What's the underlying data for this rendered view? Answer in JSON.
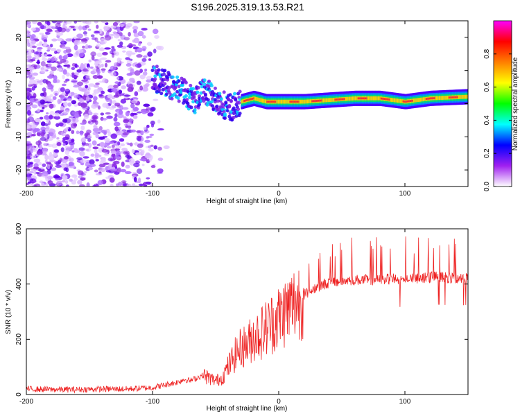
{
  "title": "S196.2025.319.13.53.R21",
  "chart_data": [
    {
      "type": "heatmap",
      "name": "spectrogram",
      "xlabel": "Height of straight line (km)",
      "ylabel": "Frequency (Hz)",
      "xlim": [
        -200,
        150
      ],
      "ylim": [
        -25,
        25
      ],
      "x_ticks": [
        -200,
        -100,
        0,
        100
      ],
      "y_ticks": [
        -20,
        -10,
        0,
        10,
        20
      ],
      "ridge": {
        "x": [
          -100,
          -90,
          -80,
          -70,
          -65,
          -60,
          -55,
          -50,
          -45,
          -40,
          -35,
          -30,
          -20,
          -10,
          0,
          20,
          40,
          60,
          80,
          100,
          120,
          150
        ],
        "frequency": [
          8,
          6,
          5,
          2,
          1,
          4,
          3,
          1,
          0,
          -1,
          -1,
          0,
          1,
          0,
          0,
          0,
          0.5,
          1,
          1,
          0,
          1,
          1.5
        ]
      },
      "colorbar": {
        "label": "Normalized spectral amplitude",
        "range": [
          0,
          1
        ],
        "ticks": [
          0,
          0.2,
          0.4,
          0.6,
          0.8
        ],
        "tick_labels": [
          "0.0",
          "0.2",
          "0.4",
          "0.6",
          "0.8"
        ],
        "stops": [
          "#ffffff",
          "#a020f0",
          "#0000ff",
          "#00ffff",
          "#00ff00",
          "#ffff00",
          "#ff7f00",
          "#ff0000",
          "#ff00ff"
        ]
      }
    },
    {
      "type": "line",
      "name": "snr",
      "xlabel": "Height of straight line (km)",
      "ylabel": "SNR (10 * v/v)",
      "xlim": [
        -200,
        150
      ],
      "ylim": [
        0,
        600
      ],
      "x_ticks": [
        -200,
        -100,
        0,
        100
      ],
      "y_ticks": [
        0,
        200,
        400,
        600
      ],
      "color": "#ee2222",
      "series": [
        {
          "name": "SNR",
          "x": [
            -200,
            -180,
            -160,
            -140,
            -120,
            -100,
            -90,
            -80,
            -75,
            -70,
            -65,
            -60,
            -55,
            -50,
            -45,
            -40,
            -35,
            -30,
            -25,
            -20,
            -15,
            -10,
            -5,
            0,
            5,
            10,
            15,
            20,
            25,
            30,
            40,
            50,
            60,
            70,
            80,
            90,
            100,
            110,
            120,
            130,
            140,
            150
          ],
          "values": [
            20,
            18,
            18,
            20,
            20,
            25,
            35,
            45,
            55,
            50,
            60,
            70,
            60,
            50,
            60,
            100,
            140,
            170,
            180,
            210,
            220,
            240,
            260,
            280,
            300,
            320,
            340,
            360,
            375,
            390,
            405,
            410,
            415,
            415,
            415,
            420,
            415,
            420,
            425,
            425,
            420,
            425
          ]
        }
      ]
    }
  ]
}
